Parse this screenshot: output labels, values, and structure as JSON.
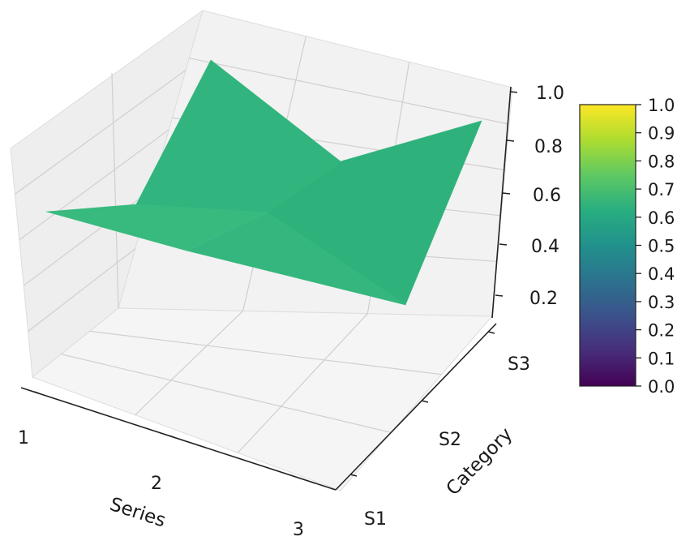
{
  "chart_data": {
    "type": "surface3d",
    "title": "",
    "x_axis": {
      "label": "Series",
      "ticks": [
        "1",
        "2",
        "3"
      ]
    },
    "y_axis": {
      "label": "Category",
      "ticks": [
        "S1",
        "S2",
        "S3"
      ]
    },
    "z_axis": {
      "label": "",
      "ticks": [
        "0.2",
        "0.4",
        "0.6",
        "0.8",
        "1.0"
      ],
      "lim": [
        0.1,
        1.0
      ]
    },
    "x": [
      1,
      2,
      3
    ],
    "y": [
      "S1",
      "S2",
      "S3"
    ],
    "z": [
      [
        0.6,
        0.51,
        0.18
      ],
      [
        0.73,
        0.6,
        0.93
      ],
      [
        0.97,
        0.6,
        0.77
      ]
    ],
    "surface_color": "#33b57f",
    "colormap": "viridis",
    "colorbar": {
      "range": [
        0.0,
        1.0
      ],
      "ticks": [
        "0.0",
        "0.1",
        "0.2",
        "0.3",
        "0.4",
        "0.5",
        "0.6",
        "0.7",
        "0.8",
        "0.9",
        "1.0"
      ]
    },
    "grid": true
  }
}
